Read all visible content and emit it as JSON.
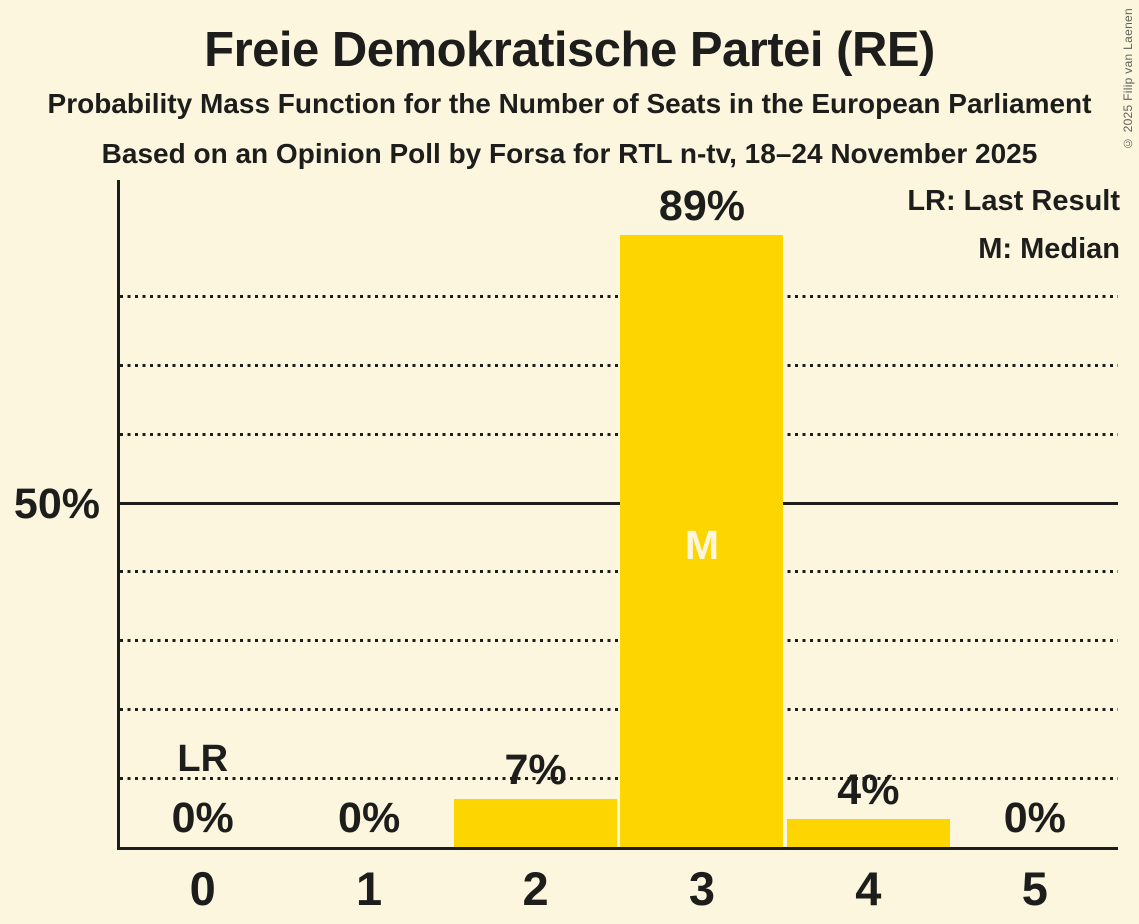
{
  "title": "Freie Demokratische Partei (RE)",
  "subtitle1": "Probability Mass Function for the Number of Seats in the European Parliament",
  "subtitle2": "Based on an Opinion Poll by Forsa for RTL n-tv, 18–24 November 2025",
  "copyright": "© 2025 Filip van Laenen",
  "legend": {
    "lr": "LR: Last Result",
    "m": "M: Median"
  },
  "chart_data": {
    "type": "bar",
    "xlabel": "",
    "ylabel": "",
    "y_axis_label": "50%",
    "categories": [
      "0",
      "1",
      "2",
      "3",
      "4",
      "5"
    ],
    "values": [
      0,
      0,
      7,
      89,
      4,
      0
    ],
    "value_labels": [
      "0%",
      "0%",
      "7%",
      "89%",
      "4%",
      "0%"
    ],
    "last_result_index": 0,
    "last_result_label": "LR",
    "median_index": 3,
    "median_label": "M",
    "ylim": [
      0,
      97
    ],
    "gridlines_percent": [
      10,
      20,
      30,
      40,
      50,
      60,
      70,
      80
    ],
    "solid_gridline_percent": 50,
    "grid": true,
    "legend_position": "top-right",
    "colors": {
      "bar": "#FDD500",
      "background": "#FCF6DF",
      "text": "#1D1D1B",
      "median_text": "#FCF6DF"
    }
  }
}
